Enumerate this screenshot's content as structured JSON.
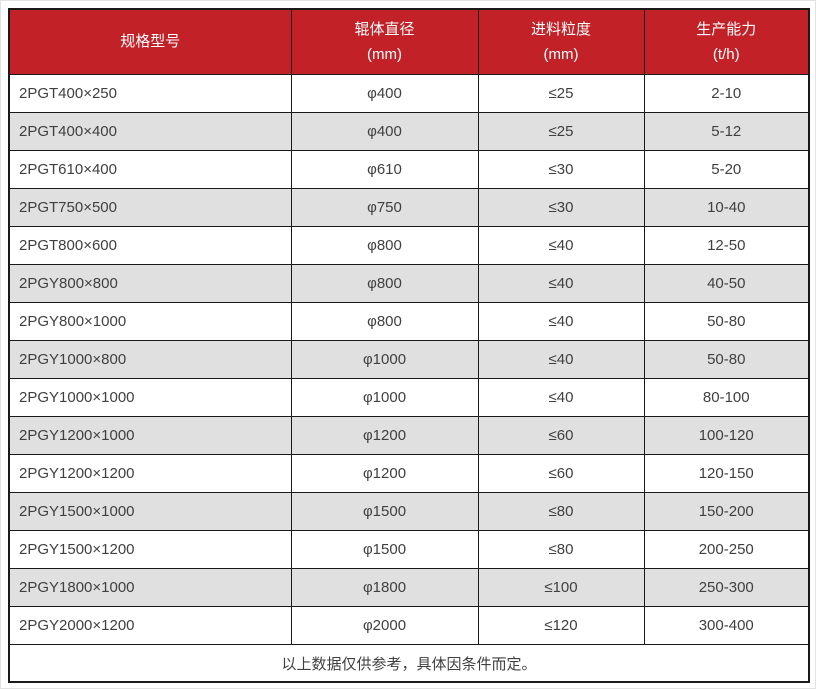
{
  "colors": {
    "header_bg": "#C22127",
    "header_text": "#FFFFFF",
    "row_bg": "#FFFFFF",
    "row_alt_bg": "#E0E0E0",
    "border": "#1A1A1A",
    "text": "#404040",
    "page_border": "#E2E2E2"
  },
  "table": {
    "columns": [
      {
        "label": "规格型号",
        "unit": ""
      },
      {
        "label": "辊体直径",
        "unit": "(mm)"
      },
      {
        "label": "进料粒度",
        "unit": "(mm)"
      },
      {
        "label": "生产能力",
        "unit": "(t/h)"
      }
    ],
    "rows": [
      [
        "2PGT400×250",
        "φ400",
        "≤25",
        "2-10"
      ],
      [
        "2PGT400×400",
        "φ400",
        "≤25",
        "5-12"
      ],
      [
        "2PGT610×400",
        "φ610",
        "≤30",
        "5-20"
      ],
      [
        "2PGT750×500",
        "φ750",
        "≤30",
        "10-40"
      ],
      [
        "2PGT800×600",
        "φ800",
        "≤40",
        "12-50"
      ],
      [
        "2PGY800×800",
        "φ800",
        "≤40",
        "40-50"
      ],
      [
        "2PGY800×1000",
        "φ800",
        "≤40",
        "50-80"
      ],
      [
        "2PGY1000×800",
        "φ1000",
        "≤40",
        "50-80"
      ],
      [
        "2PGY1000×1000",
        "φ1000",
        "≤40",
        "80-100"
      ],
      [
        "2PGY1200×1000",
        "φ1200",
        "≤60",
        "100-120"
      ],
      [
        "2PGY1200×1200",
        "φ1200",
        "≤60",
        "120-150"
      ],
      [
        "2PGY1500×1000",
        "φ1500",
        "≤80",
        "150-200"
      ],
      [
        "2PGY1500×1200",
        "φ1500",
        "≤80",
        "200-250"
      ],
      [
        "2PGY1800×1000",
        "φ1800",
        "≤100",
        "250-300"
      ],
      [
        "2PGY2000×1200",
        "φ2000",
        "≤120",
        "300-400"
      ]
    ],
    "footnote": "以上数据仅供参考，具体因条件而定。"
  }
}
